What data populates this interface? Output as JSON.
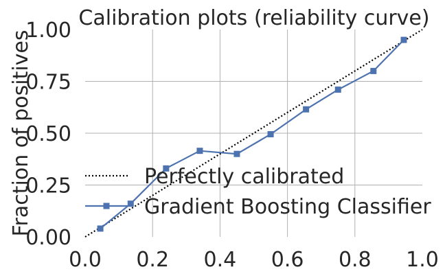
{
  "chart_data": {
    "type": "line",
    "title": "Calibration plots (reliability curve)",
    "xlabel": "",
    "ylabel": "Fraction of positives",
    "xlim": [
      0.0,
      1.0
    ],
    "ylim": [
      0.0,
      1.0
    ],
    "xticks": [
      "0.0",
      "0.2",
      "0.4",
      "0.6",
      "0.8",
      "1.0"
    ],
    "yticks": [
      "0.00",
      "0.25",
      "0.50",
      "0.75",
      "1.00"
    ],
    "grid": true,
    "legend_position": "lower-left",
    "series": [
      {
        "name": "Perfectly calibrated",
        "style": "dotted",
        "color": "#000000",
        "x": [
          0.0,
          1.0
        ],
        "y": [
          0.0,
          1.0
        ]
      },
      {
        "name": "Gradient Boosting Classifier",
        "style": "solid-square-markers",
        "color": "#4c72b0",
        "x": [
          0.045,
          0.135,
          0.24,
          0.34,
          0.45,
          0.55,
          0.655,
          0.75,
          0.855,
          0.945
        ],
        "y": [
          0.04,
          0.16,
          0.33,
          0.415,
          0.4,
          0.495,
          0.615,
          0.71,
          0.8,
          0.95
        ]
      }
    ]
  }
}
